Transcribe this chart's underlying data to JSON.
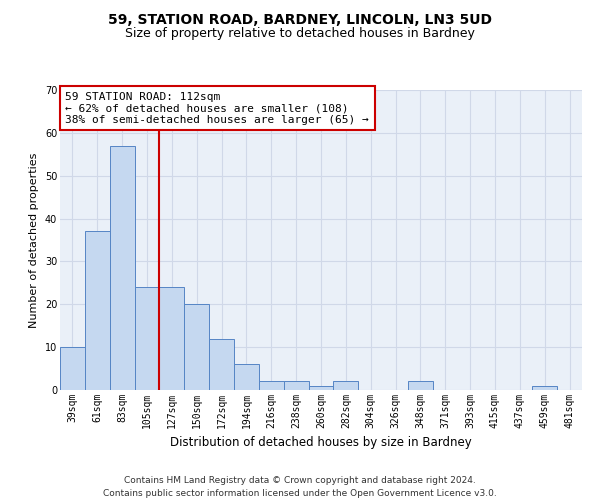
{
  "title": "59, STATION ROAD, BARDNEY, LINCOLN, LN3 5UD",
  "subtitle": "Size of property relative to detached houses in Bardney",
  "xlabel": "Distribution of detached houses by size in Bardney",
  "ylabel": "Number of detached properties",
  "categories": [
    "39sqm",
    "61sqm",
    "83sqm",
    "105sqm",
    "127sqm",
    "150sqm",
    "172sqm",
    "194sqm",
    "216sqm",
    "238sqm",
    "260sqm",
    "282sqm",
    "304sqm",
    "326sqm",
    "348sqm",
    "371sqm",
    "393sqm",
    "415sqm",
    "437sqm",
    "459sqm",
    "481sqm"
  ],
  "values": [
    10,
    37,
    57,
    24,
    24,
    20,
    12,
    6,
    2,
    2,
    1,
    2,
    0,
    0,
    2,
    0,
    0,
    0,
    0,
    1,
    0
  ],
  "bar_color": "#c5d8f0",
  "bar_edge_color": "#5585c5",
  "vline_x": 3,
  "annotation_text": "59 STATION ROAD: 112sqm\n← 62% of detached houses are smaller (108)\n38% of semi-detached houses are larger (65) →",
  "annotation_box_color": "#ffffff",
  "annotation_box_edge_color": "#cc0000",
  "vline_color": "#cc0000",
  "ylim": [
    0,
    70
  ],
  "yticks": [
    0,
    10,
    20,
    30,
    40,
    50,
    60,
    70
  ],
  "grid_color": "#d0d8e8",
  "background_color": "#eaf0f8",
  "footer_text": "Contains HM Land Registry data © Crown copyright and database right 2024.\nContains public sector information licensed under the Open Government Licence v3.0.",
  "title_fontsize": 10,
  "subtitle_fontsize": 9,
  "xlabel_fontsize": 8.5,
  "ylabel_fontsize": 8,
  "tick_fontsize": 7,
  "annotation_fontsize": 8,
  "footer_fontsize": 6.5
}
